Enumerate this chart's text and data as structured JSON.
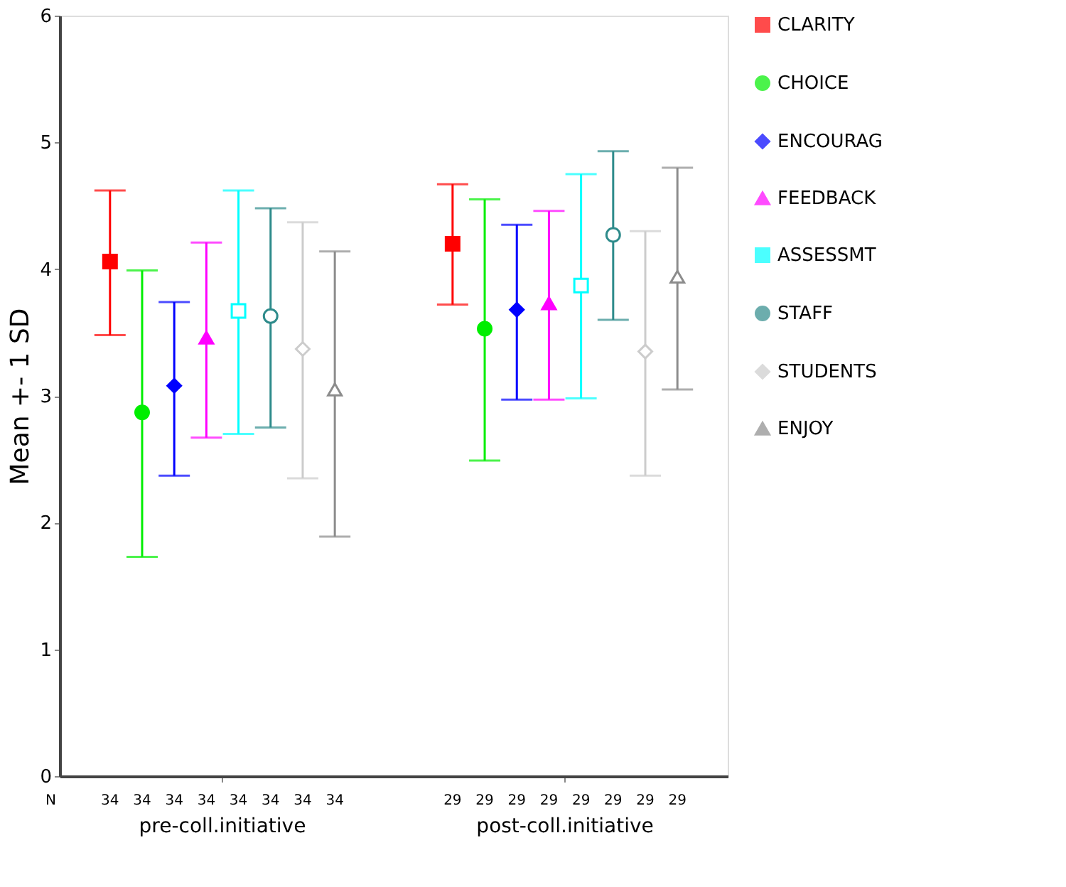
{
  "chart_data": {
    "type": "scatter",
    "ylabel": "Mean +- 1 SD",
    "categories": [
      "pre-coll.initiative",
      "post-coll.initiative"
    ],
    "ylim": [
      0,
      6
    ],
    "yticks": [
      0,
      1,
      2,
      3,
      4,
      5,
      6
    ],
    "grid": false,
    "legend": "right",
    "series": [
      {
        "name": "CLARITY",
        "color": "#ff0000",
        "marker": "square",
        "values": [
          4.06,
          4.2
        ],
        "errors": [
          [
            3.48,
            4.62
          ],
          [
            3.72,
            4.67
          ]
        ]
      },
      {
        "name": "CHOICE",
        "color": "#00ee00",
        "marker": "circle",
        "values": [
          2.87,
          3.53
        ],
        "errors": [
          [
            1.73,
            3.99
          ],
          [
            2.49,
            4.55
          ]
        ]
      },
      {
        "name": "ENCOURAG",
        "color": "#0000ff",
        "marker": "diamond",
        "values": [
          3.08,
          3.68
        ],
        "errors": [
          [
            2.37,
            3.74
          ],
          [
            2.97,
            4.35
          ]
        ]
      },
      {
        "name": "FEEDBACK",
        "color": "#ff00ff",
        "marker": "triangle",
        "values": [
          3.46,
          3.73
        ],
        "errors": [
          [
            2.67,
            4.21
          ],
          [
            2.97,
            4.46
          ]
        ]
      },
      {
        "name": "ASSESSMT",
        "color": "#00ffff",
        "marker": "square",
        "values": [
          3.67,
          3.87
        ],
        "errors": [
          [
            2.7,
            4.62
          ],
          [
            2.98,
            4.75
          ]
        ]
      },
      {
        "name": "STAFF",
        "color": "#2e8b8b",
        "marker": "circle",
        "values": [
          3.63,
          4.27
        ],
        "errors": [
          [
            2.75,
            4.48
          ],
          [
            3.6,
            4.93
          ]
        ]
      },
      {
        "name": "STUDENTS",
        "color": "#cccccc",
        "marker": "diamond",
        "values": [
          3.37,
          3.35
        ],
        "errors": [
          [
            2.35,
            4.37
          ],
          [
            2.37,
            4.3
          ]
        ]
      },
      {
        "name": "ENJOY",
        "color": "#8c8c8c",
        "marker": "triangle",
        "values": [
          3.05,
          3.94
        ],
        "errors": [
          [
            1.89,
            4.14
          ],
          [
            3.05,
            4.8
          ]
        ]
      }
    ],
    "annotations": [
      "N",
      "34",
      "34",
      "34",
      "34",
      "34",
      "34",
      "34",
      "34",
      "29",
      "29",
      "29",
      "29",
      "29",
      "29",
      "29",
      "29"
    ]
  }
}
